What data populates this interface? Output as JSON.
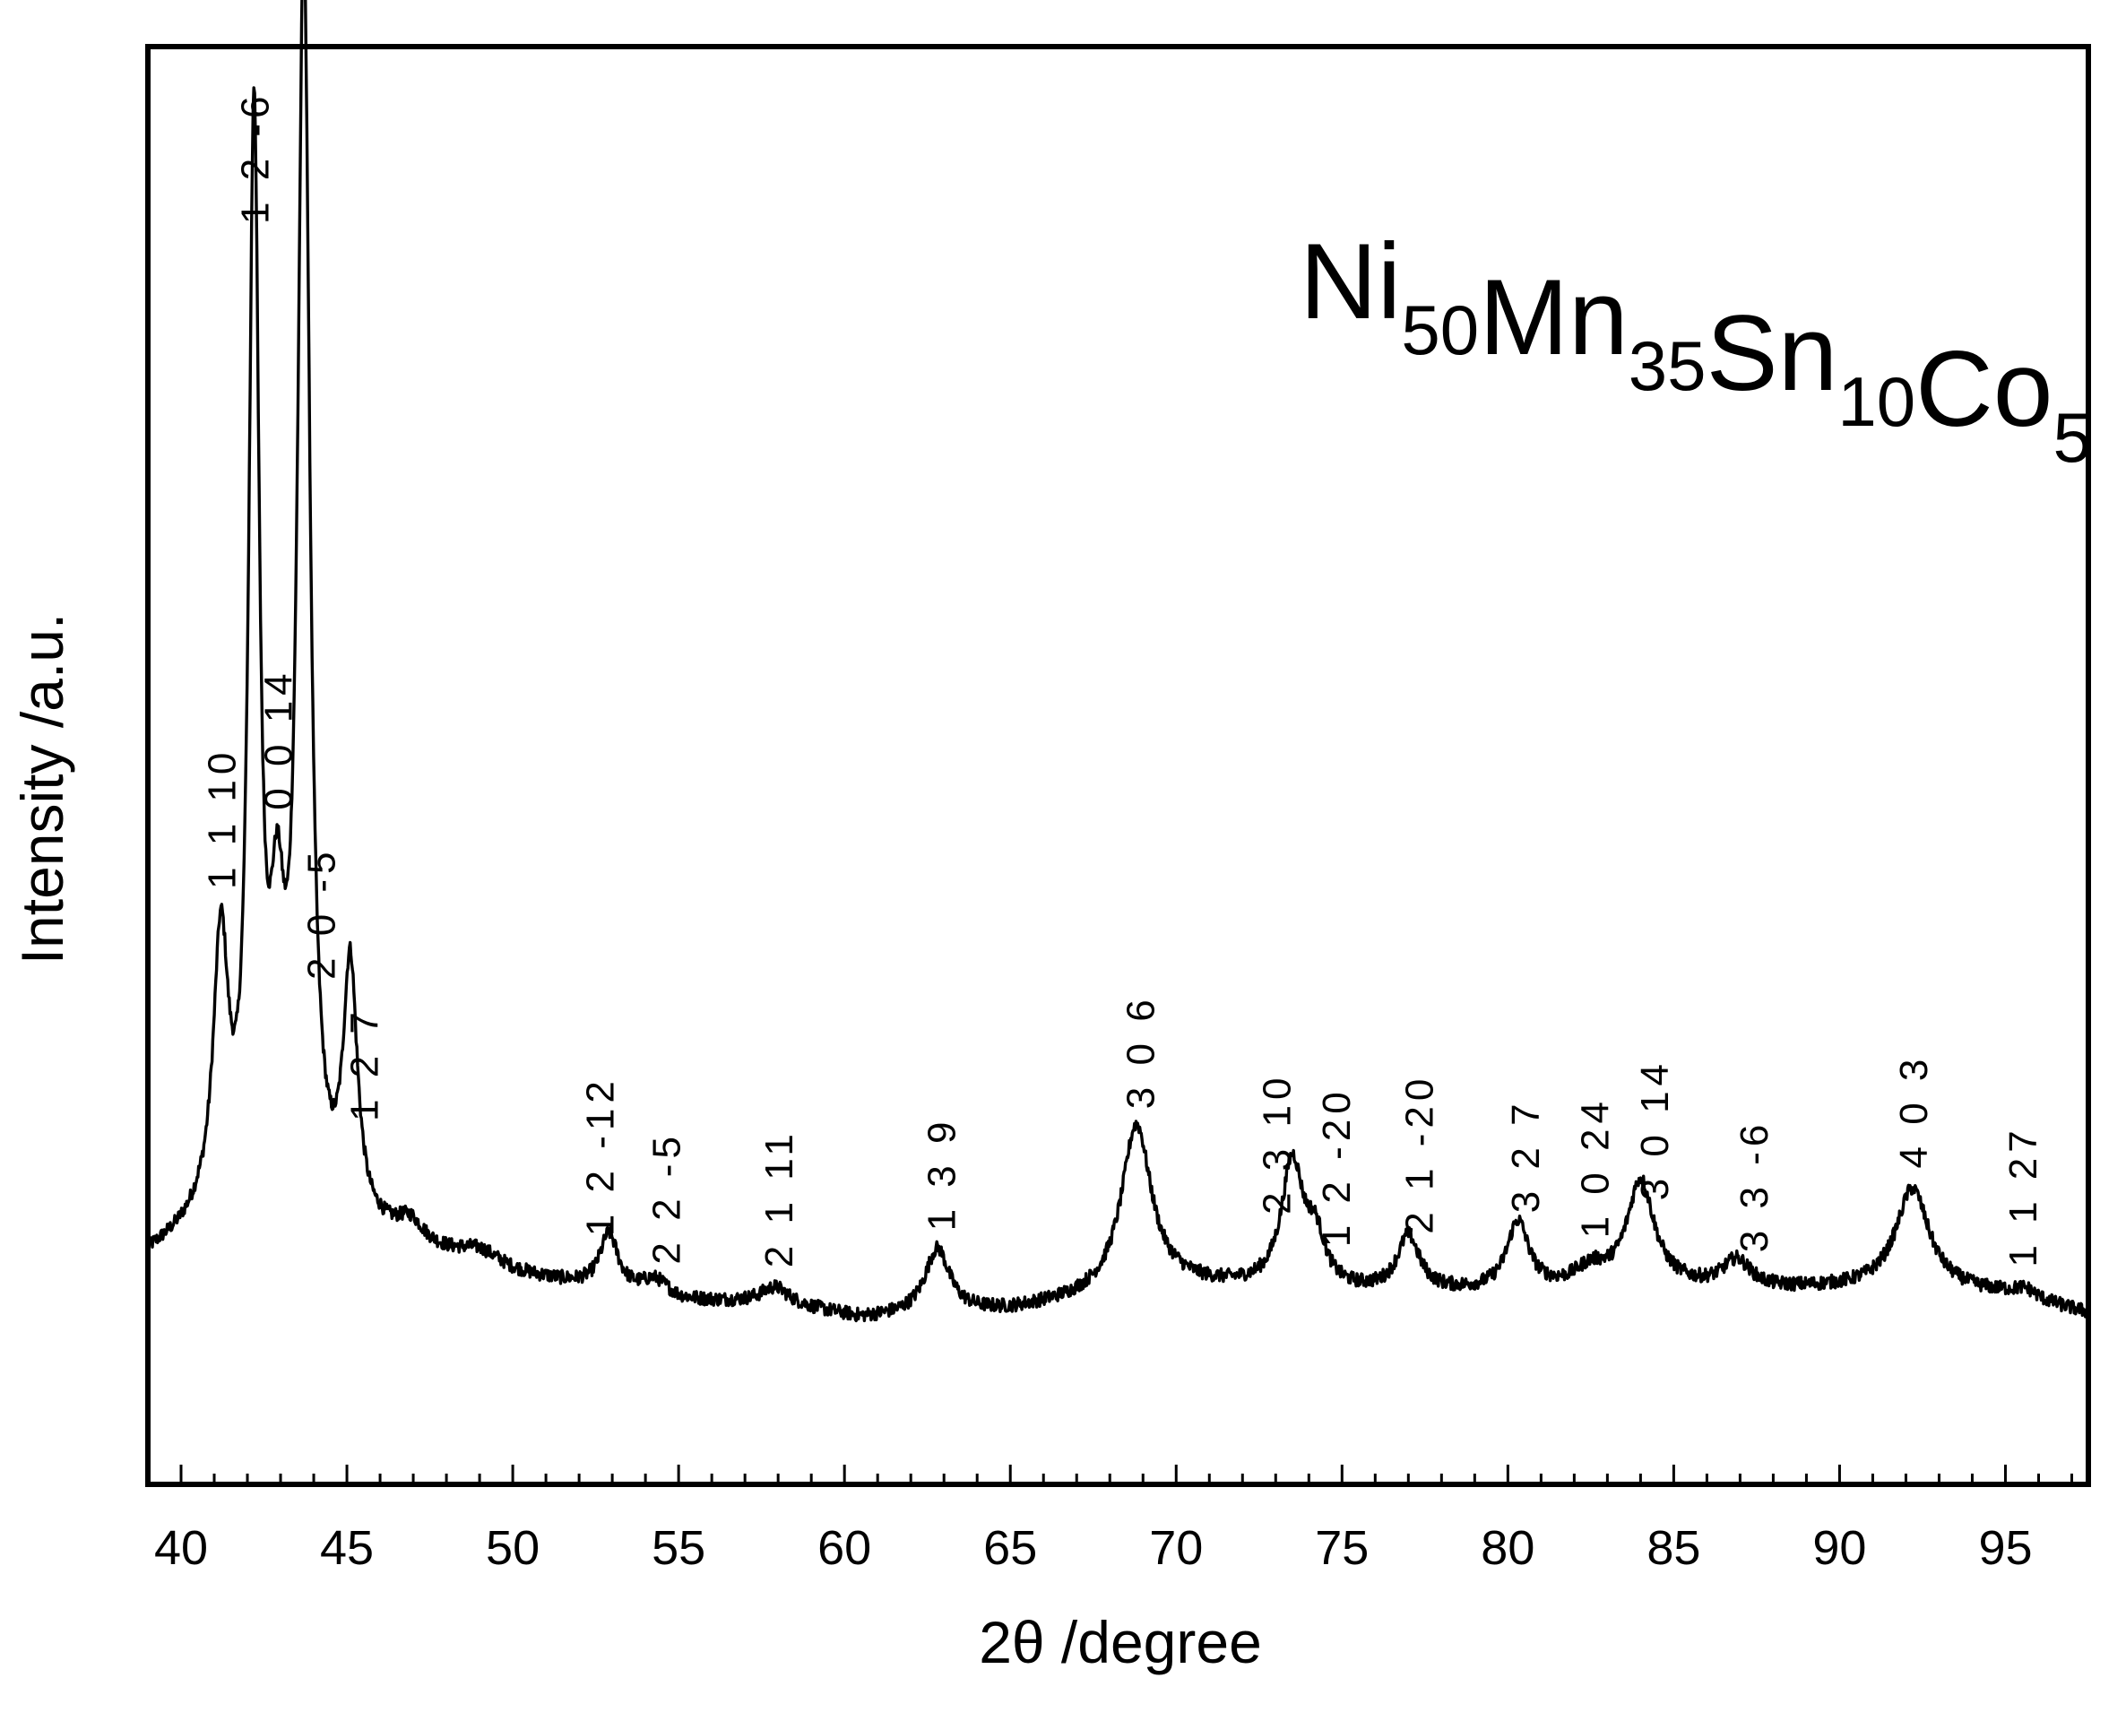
{
  "chart_data": {
    "type": "line",
    "xlabel": "2θ  /degree",
    "ylabel": "Intensity /a.u.",
    "xlim": [
      39,
      97.5
    ],
    "ylim": [
      0,
      100
    ],
    "yticks_shown": false,
    "grid": false,
    "legend": "none",
    "xticks": [
      40,
      45,
      50,
      55,
      60,
      65,
      70,
      75,
      80,
      85,
      90,
      95
    ],
    "composition": {
      "parts": [
        {
          "el": "Ni",
          "n": "50"
        },
        {
          "el": "Mn",
          "n": "35"
        },
        {
          "el": "Sn",
          "n": "10"
        },
        {
          "el": "Co",
          "n": "5"
        }
      ]
    },
    "baseline": [
      [
        39.0,
        11.5
      ],
      [
        40.5,
        13.0
      ],
      [
        42.0,
        12.2
      ],
      [
        46.0,
        12.3
      ],
      [
        50.0,
        10.3
      ],
      [
        55.0,
        8.6
      ],
      [
        58.0,
        8.5
      ],
      [
        60.5,
        7.5
      ],
      [
        65.0,
        8.0
      ],
      [
        70.0,
        9.6
      ],
      [
        72.0,
        9.5
      ],
      [
        75.0,
        9.2
      ],
      [
        80.0,
        9.2
      ],
      [
        85.0,
        9.5
      ],
      [
        88.0,
        9.4
      ],
      [
        92.0,
        9.6
      ],
      [
        95.0,
        9.1
      ],
      [
        97.5,
        7.9
      ]
    ],
    "peaks": [
      {
        "x": 41.2,
        "h": 18.2,
        "w": 0.28
      },
      {
        "x": 42.2,
        "h": 71.0,
        "w": 0.19
      },
      {
        "x": 42.9,
        "h": 16.0,
        "w": 0.28
      },
      {
        "x": 43.7,
        "h": 82.5,
        "w": 0.22
      },
      {
        "x": 45.1,
        "h": 16.8,
        "w": 0.26
      },
      {
        "x": 46.9,
        "h": 1.5,
        "w": 0.5
      },
      {
        "x": 49.0,
        "h": 1.0,
        "w": 0.8
      },
      {
        "x": 52.9,
        "h": 3.6,
        "w": 0.33
      },
      {
        "x": 54.3,
        "h": 1.1,
        "w": 0.5
      },
      {
        "x": 57.9,
        "h": 1.0,
        "w": 0.5
      },
      {
        "x": 62.8,
        "h": 4.3,
        "w": 0.45
      },
      {
        "x": 68.8,
        "h": 11.0,
        "w": 0.55
      },
      {
        "x": 73.5,
        "h": 8.2,
        "w": 0.4
      },
      {
        "x": 74.2,
        "h": 3.0,
        "w": 0.35
      },
      {
        "x": 77.0,
        "h": 3.6,
        "w": 0.4
      },
      {
        "x": 80.3,
        "h": 4.5,
        "w": 0.4
      },
      {
        "x": 82.5,
        "h": 1.2,
        "w": 0.6
      },
      {
        "x": 84.0,
        "h": 7.0,
        "w": 0.5
      },
      {
        "x": 86.9,
        "h": 1.8,
        "w": 0.5
      },
      {
        "x": 92.2,
        "h": 6.5,
        "w": 0.6
      },
      {
        "x": 95.6,
        "h": 0.6,
        "w": 0.4
      }
    ],
    "annotations": [
      {
        "text": "1 1 10",
        "x": 41.2
      },
      {
        "text": "1 2 -6",
        "x": 42.2
      },
      {
        "text": "0 0 14",
        "x": 42.9
      },
      {
        "text": "2 0 -5",
        "x": 44.2
      },
      {
        "text": "1 2 7",
        "x": 45.5
      },
      {
        "text": "1 2 -12",
        "x": 52.6
      },
      {
        "text": "2 2 -5",
        "x": 54.6
      },
      {
        "text": "2 1 11",
        "x": 58.0
      },
      {
        "text": "1 3 9",
        "x": 62.9
      },
      {
        "text": "3 0 6",
        "x": 68.9
      },
      {
        "text": "2 3 10",
        "x": 73.0
      },
      {
        "text": "1 2 -20",
        "x": 74.8
      },
      {
        "text": "2 1 -20",
        "x": 77.3
      },
      {
        "text": "3 2 7",
        "x": 80.5
      },
      {
        "text": "1 0 24",
        "x": 82.6
      },
      {
        "text": "3 0 14",
        "x": 84.4
      },
      {
        "text": "3 3 -6",
        "x": 87.4
      },
      {
        "text": "4 0 3",
        "x": 92.2
      },
      {
        "text": "1 1 27",
        "x": 95.5
      }
    ]
  }
}
